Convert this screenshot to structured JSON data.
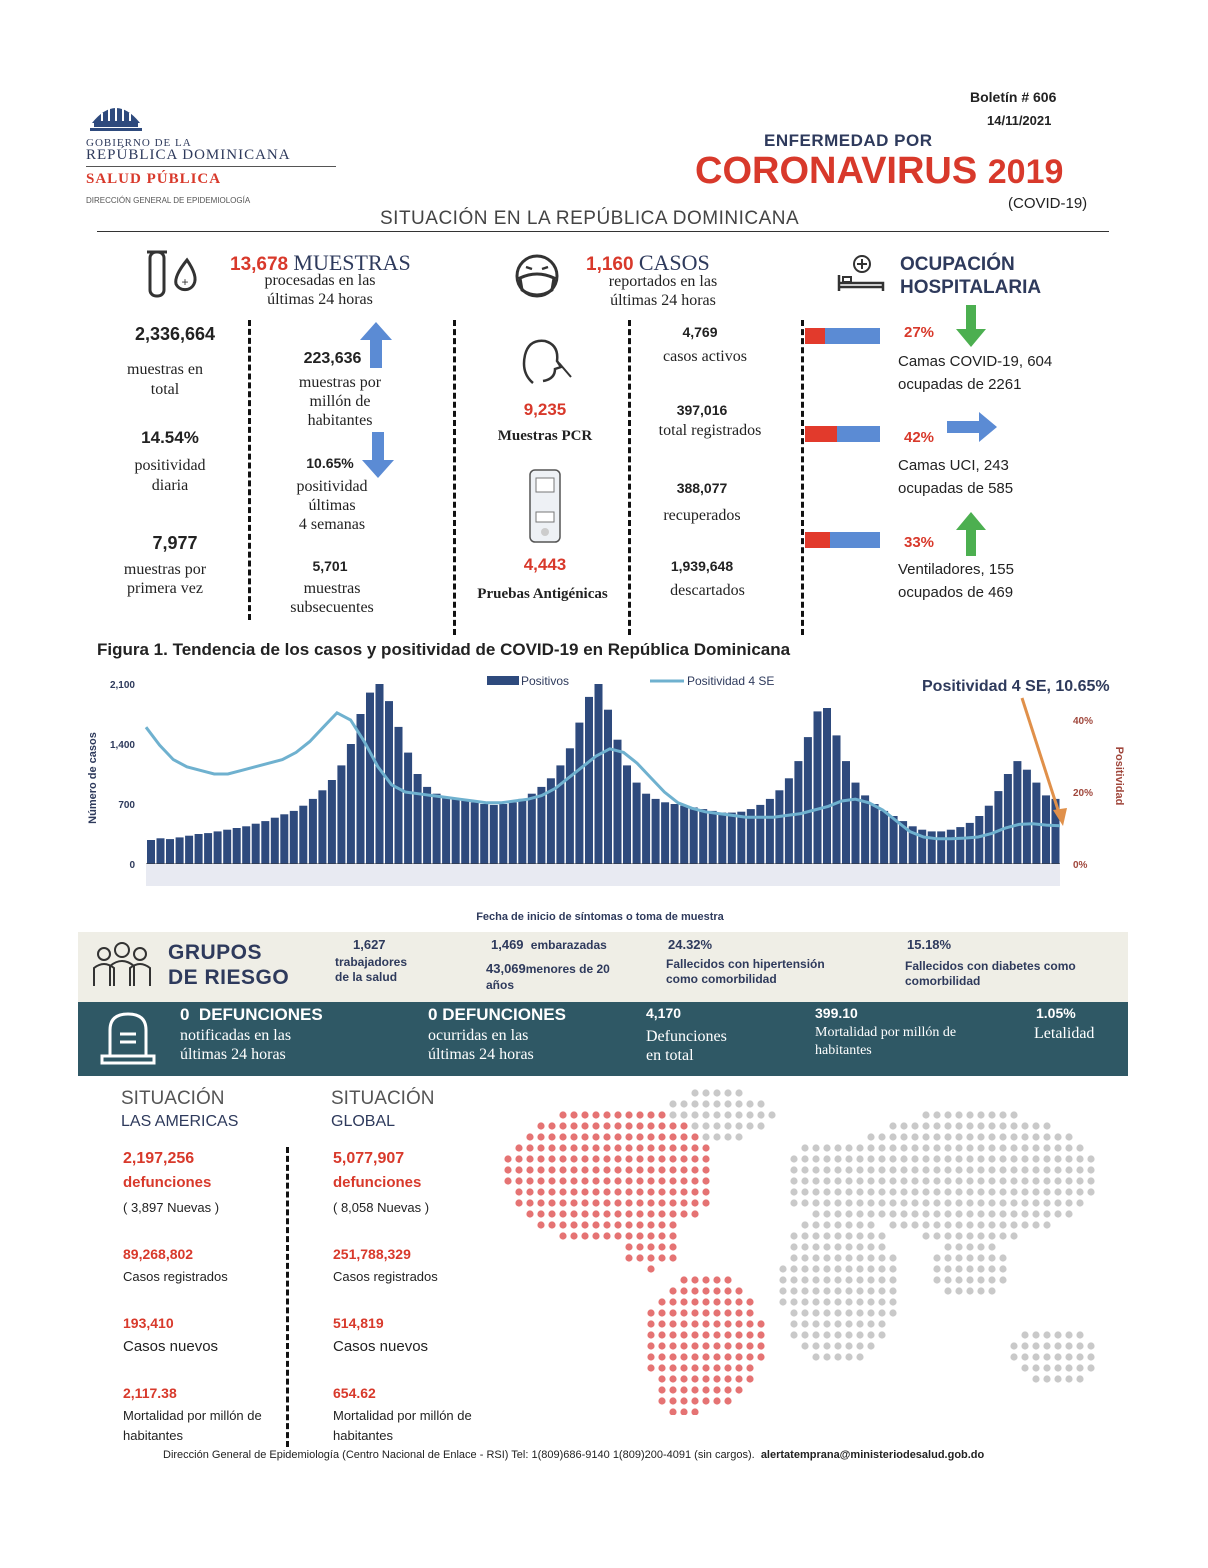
{
  "header": {
    "gov_line1": "GOBIERNO DE LA",
    "gov_line2": "REPÚBLICA DOMINICANA",
    "salud": "SALUD PÚBLICA",
    "direccion": "DIRECCIÓN GENERAL DE EPIDEMIOLOGÍA",
    "boletin": "Boletín # 606",
    "fecha": "14/11/2021",
    "enfermedad": "ENFERMEDAD POR",
    "coronavirus": "CORONAVIRUS",
    "year": "2019",
    "covid": "(COVID-19)",
    "situacion": "SITUACIÓN EN LA REPÚBLICA DOMINICANA"
  },
  "muestras": {
    "count": "13,678",
    "title": "MUESTRAS",
    "subtitle1": "procesadas en las",
    "subtitle2": "últimas 24 horas",
    "total_value": "2,336,664",
    "total_label1": "muestras en",
    "total_label2": "total",
    "per_million_value": "223,636",
    "per_million_label1": "muestras por",
    "per_million_label2": "millón de",
    "per_million_label3": "habitantes",
    "pos_diaria_value": "14.54%",
    "pos_diaria_label1": "positividad",
    "pos_diaria_label2": "diaria",
    "pos_4sem_value": "10.65%",
    "pos_4sem_label1": "positividad",
    "pos_4sem_label2": "últimas",
    "pos_4sem_label3": "4 semanas",
    "primera_value": "7,977",
    "primera_label1": "muestras por",
    "primera_label2": "primera vez",
    "subsec_value": "5,701",
    "subsec_label1": "muestras",
    "subsec_label2": "subsecuentes"
  },
  "casos": {
    "count": "1,160",
    "title": "CASOS",
    "subtitle1": "reportados en las",
    "subtitle2": "últimas 24 horas",
    "pcr_value": "9,235",
    "pcr_label": "Muestras PCR",
    "antig_value": "4,443",
    "antig_label": "Pruebas Antigénicas",
    "activos_value": "4,769",
    "activos_label": "casos activos",
    "registrados_value": "397,016",
    "registrados_label": "total registrados",
    "recuperados_value": "388,077",
    "recuperados_label": "recuperados",
    "descartados_value": "1,939,648",
    "descartados_label": "descartados"
  },
  "ocupacion": {
    "title1": "OCUPACIÓN",
    "title2": "HOSPITALARIA",
    "items": [
      {
        "pct": "27%",
        "fraction": 0.27,
        "line1": "Camas COVID-19,  604",
        "line2": "ocupadas de 2261",
        "trend": "down"
      },
      {
        "pct": "42%",
        "fraction": 0.42,
        "line1": "Camas UCI,  243",
        "line2": "ocupadas de 585",
        "trend": "right"
      },
      {
        "pct": "33%",
        "fraction": 0.33,
        "line1": "Ventiladores, 155",
        "line2": "ocupados de 469",
        "trend": "up"
      }
    ],
    "colors": {
      "occupied": "#e23a2c",
      "free": "#5b8bd4"
    }
  },
  "figure": {
    "title": "Figura 1. Tendencia de los casos y positividad de COVID-19 en República Dominicana",
    "annotation": "Positividad 4 SE, 10.65%"
  },
  "chart_data": {
    "type": "bar",
    "xlabel": "Fecha de inicio de síntomas o toma de muestra",
    "ylabel": "Número de casos",
    "ylabel_right": "Positividad",
    "ylim": [
      0,
      2100
    ],
    "yticks": [
      "0",
      "700",
      "1,400",
      "2,100"
    ],
    "ylim_right": [
      0,
      0.5
    ],
    "yticks_right": [
      "0%",
      "20%",
      "40%"
    ],
    "legend": "top-center",
    "series": [
      {
        "name": "Positivos",
        "kind": "bar",
        "color": "#2e4a7d",
        "values": [
          280,
          300,
          290,
          310,
          330,
          350,
          360,
          380,
          400,
          420,
          440,
          470,
          500,
          540,
          580,
          620,
          680,
          760,
          860,
          980,
          1150,
          1400,
          1750,
          2000,
          2100,
          1900,
          1600,
          1300,
          1050,
          900,
          820,
          780,
          760,
          740,
          720,
          700,
          690,
          700,
          720,
          760,
          820,
          900,
          1000,
          1150,
          1350,
          1650,
          1950,
          2100,
          1800,
          1450,
          1150,
          950,
          820,
          760,
          720,
          700,
          680,
          660,
          640,
          620,
          600,
          600,
          610,
          640,
          690,
          760,
          860,
          1000,
          1200,
          1480,
          1780,
          1820,
          1500,
          1200,
          950,
          800,
          700,
          620,
          560,
          500,
          440,
          400,
          380,
          380,
          400,
          430,
          480,
          560,
          680,
          850,
          1050,
          1200,
          1100,
          950,
          800,
          760
        ]
      },
      {
        "name": "Positividad 4 SE",
        "kind": "line",
        "color": "#6fb1cf",
        "values": [
          0.38,
          0.33,
          0.29,
          0.27,
          0.26,
          0.25,
          0.25,
          0.26,
          0.27,
          0.28,
          0.29,
          0.31,
          0.34,
          0.38,
          0.42,
          0.4,
          0.34,
          0.27,
          0.22,
          0.2,
          0.195,
          0.19,
          0.185,
          0.18,
          0.175,
          0.17,
          0.17,
          0.175,
          0.18,
          0.19,
          0.21,
          0.24,
          0.27,
          0.3,
          0.32,
          0.31,
          0.28,
          0.24,
          0.2,
          0.17,
          0.155,
          0.145,
          0.14,
          0.135,
          0.13,
          0.13,
          0.13,
          0.135,
          0.14,
          0.15,
          0.16,
          0.175,
          0.18,
          0.17,
          0.15,
          0.12,
          0.09,
          0.075,
          0.07,
          0.07,
          0.072,
          0.075,
          0.085,
          0.1,
          0.11,
          0.112,
          0.108,
          0.1065
        ]
      }
    ]
  },
  "riesgo": {
    "title1": "GRUPOS",
    "title2": "DE RIESGO",
    "salud_value": "1,627",
    "salud_label1": "trabajadores",
    "salud_label2": "de la salud",
    "emb_value": "1,469",
    "emb_label": "embarazadas",
    "menores_value": "43,069",
    "menores_label1": "menores de 20",
    "menores_label2": "años",
    "hip_value": "24.32%",
    "hip_label1": "Fallecidos con hipertensión",
    "hip_label2": "como comorbilidad",
    "dia_value": "15.18%",
    "dia_label1": "Fallecidos con diabetes como",
    "dia_label2": "comorbilidad"
  },
  "defunciones": {
    "notif_value": "0",
    "notif_title": "DEFUNCIONES",
    "notif_label1": "notificadas en las",
    "notif_label2": "últimas 24 horas",
    "ocurr_value": "0",
    "ocurr_title": "DEFUNCIONES",
    "ocurr_label1": "ocurridas en las",
    "ocurr_label2": "últimas  24 horas",
    "total_value": "4,170",
    "total_label1": "Defunciones",
    "total_label2": "en total",
    "mort_value": "399.10",
    "mort_label1": "Mortalidad por millón de",
    "mort_label2": "habitantes",
    "let_value": "1.05%",
    "let_label": "Letalidad"
  },
  "americas": {
    "title1": "SITUACIÓN",
    "title2": "LAS AMERICAS",
    "def_value": "2,197,256",
    "def_label": "defunciones",
    "def_new": "( 3,897 Nuevas )",
    "casos_value": "89,268,802",
    "casos_label": "Casos registrados",
    "nuevos_value": "193,410",
    "nuevos_label": "Casos nuevos",
    "mort_value": "2,117.38",
    "mort_label1": "Mortalidad por millón de",
    "mort_label2": "habitantes"
  },
  "global": {
    "title1": "SITUACIÓN",
    "title2": "GLOBAL",
    "def_value": "5,077,907",
    "def_label": "defunciones",
    "def_new": "( 8,058 Nuevas )",
    "casos_value": "251,788,329",
    "casos_label": "Casos registrados",
    "nuevos_value": "514,819",
    "nuevos_label": "Casos nuevos",
    "mort_value": "654.62",
    "mort_label1": "Mortalidad por millón de",
    "mort_label2": "habitantes"
  },
  "footer": {
    "text": "Dirección General de Epidemiología (Centro Nacional de Enlace - RSI) Tel: 1(809)686-9140   1(809)200-4091 (sin cargos).",
    "email": "alertatemprana@ministeriodesalud.gob.do"
  }
}
